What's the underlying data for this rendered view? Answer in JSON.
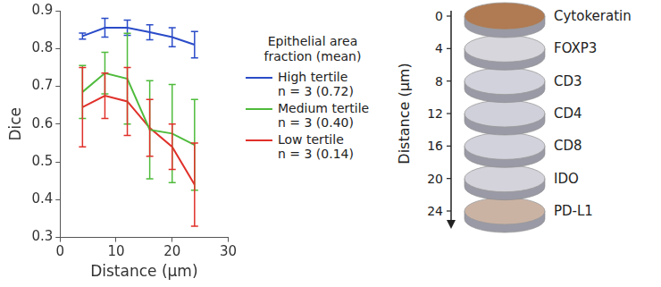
{
  "chart_data": {
    "type": "line",
    "x_label": "Distance (μm)",
    "y_label": "Dice",
    "x": [
      4,
      8,
      12,
      16,
      20,
      24
    ],
    "xlim": [
      0,
      30
    ],
    "xticks": [
      0,
      10,
      20,
      30
    ],
    "ylim": [
      0.3,
      0.9
    ],
    "yticks": [
      0.3,
      0.4,
      0.5,
      0.6,
      0.7,
      0.8,
      0.9
    ],
    "grid": false,
    "legend_title": "Epithelial area fraction (mean)",
    "series": [
      {
        "name": "High tertile",
        "label_detail": "n = 3 (0.72)",
        "color": "#2a4bc8",
        "values": [
          0.833,
          0.855,
          0.855,
          0.843,
          0.83,
          0.81
        ],
        "errors": [
          0.008,
          0.025,
          0.02,
          0.02,
          0.025,
          0.035
        ]
      },
      {
        "name": "Medium tertile",
        "label_detail": "n = 3 (0.40)",
        "color": "#4fbb3c",
        "values": [
          0.685,
          0.735,
          0.72,
          0.585,
          0.575,
          0.545
        ],
        "errors": [
          0.07,
          0.055,
          0.12,
          0.13,
          0.13,
          0.12
        ]
      },
      {
        "name": "Low tertile",
        "label_detail": "n = 3 (0.14)",
        "color": "#e0302a",
        "values": [
          0.645,
          0.675,
          0.66,
          0.59,
          0.54,
          0.44
        ],
        "errors": [
          0.105,
          0.06,
          0.09,
          0.075,
          0.06,
          0.11
        ]
      }
    ]
  },
  "diagram": {
    "axis_label": "Distance (μm)",
    "ticks": [
      0,
      4,
      8,
      12,
      16,
      20,
      24
    ],
    "sections": [
      {
        "distance": 0,
        "label": "Cytokeratin",
        "color": "#b07a52"
      },
      {
        "distance": 4,
        "label": "FOXP3",
        "color": "#d6d6dc"
      },
      {
        "distance": 8,
        "label": "CD3",
        "color": "#d2d2dc"
      },
      {
        "distance": 12,
        "label": "CD4",
        "color": "#d0d0da"
      },
      {
        "distance": 16,
        "label": "CD8",
        "color": "#d2d2dc"
      },
      {
        "distance": 20,
        "label": "IDO",
        "color": "#d4d2da"
      },
      {
        "distance": 24,
        "label": "PD-L1",
        "color": "#cbb3a4"
      }
    ]
  }
}
